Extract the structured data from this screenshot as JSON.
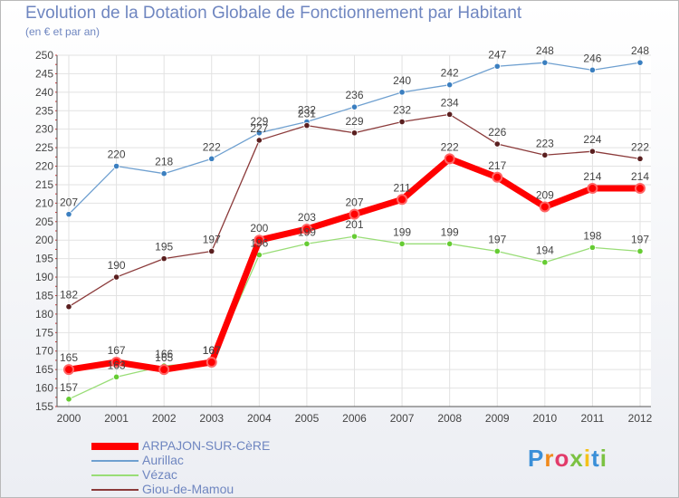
{
  "header": {
    "title": "Evolution de la Dotation Globale de Fonctionnement par Habitant",
    "subtitle": "(en € et par an)"
  },
  "chart_data": {
    "type": "line",
    "title": "Evolution de la Dotation Globale de Fonctionnement par Habitant",
    "subtitle": "(en € et par an)",
    "x": [
      2000,
      2001,
      2002,
      2003,
      2004,
      2005,
      2006,
      2007,
      2008,
      2009,
      2010,
      2011,
      2012
    ],
    "ylim": [
      155,
      250
    ],
    "yticks": [
      155,
      160,
      165,
      170,
      175,
      180,
      185,
      190,
      195,
      200,
      205,
      210,
      215,
      220,
      225,
      230,
      235,
      240,
      245,
      250
    ],
    "grid": true,
    "legend_position": "bottom-left",
    "series": [
      {
        "name": "Aurillac",
        "color": "#6fa0d0",
        "marker": "#3b7fc0",
        "values": [
          207,
          220,
          218,
          222,
          229,
          232,
          236,
          240,
          242,
          247,
          248,
          246,
          248
        ]
      },
      {
        "name": "Giou-de-Mamou",
        "color": "#8b3a3a",
        "marker": "#5a1f1f",
        "values": [
          182,
          190,
          195,
          197,
          227,
          231,
          229,
          232,
          234,
          226,
          223,
          224,
          222
        ]
      },
      {
        "name": "Vézac",
        "color": "#99dd77",
        "marker": "#66cc33",
        "values": [
          157,
          163,
          166,
          167,
          196,
          199,
          201,
          199,
          199,
          197,
          194,
          198,
          197
        ]
      },
      {
        "name": "ARPAJON-SUR-CèRE",
        "color": "#ff0000",
        "marker": "#ff0000",
        "values": [
          165,
          167,
          165,
          167,
          200,
          203,
          207,
          211,
          222,
          217,
          209,
          214,
          214
        ]
      }
    ]
  },
  "legend": {
    "items": [
      {
        "label": "ARPAJON-SUR-CèRE",
        "color": "#ff0000"
      },
      {
        "label": "Aurillac",
        "color": "#6fa0d0"
      },
      {
        "label": "Vézac",
        "color": "#99dd77"
      },
      {
        "label": "Giou-de-Mamou",
        "color": "#8b3a3a"
      }
    ]
  },
  "logo": {
    "text": "Proxiti",
    "colors": [
      "#3a8fd8",
      "#f08a1c",
      "#e23b6a",
      "#7cc242",
      "#f5c21a",
      "#3a8fd8",
      "#7cc242"
    ]
  }
}
